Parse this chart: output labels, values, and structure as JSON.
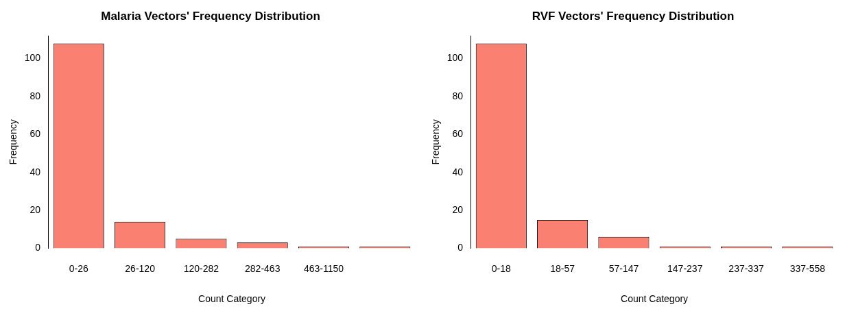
{
  "chart_data": [
    {
      "type": "bar",
      "title": "Malaria Vectors' Frequency Distribution",
      "xlabel": "Count Category",
      "ylabel": "Frequency",
      "categories": [
        "0-26",
        "26-120",
        "120-282",
        "282-463",
        "463-1150",
        null
      ],
      "values": [
        108,
        14,
        5,
        3,
        1,
        1
      ],
      "color": "#fa8072",
      "ylim": [
        0,
        112
      ],
      "yticks": [
        0,
        20,
        40,
        60,
        80,
        100
      ],
      "grid": false,
      "legend": false
    },
    {
      "type": "bar",
      "title": "RVF Vectors' Frequency Distribution",
      "xlabel": "Count Category",
      "ylabel": "Frequency",
      "categories": [
        "0-18",
        "18-57",
        "57-147",
        "147-237",
        "237-337",
        "337-558"
      ],
      "values": [
        108,
        15,
        6,
        1,
        1,
        1
      ],
      "color": "#fa8072",
      "ylim": [
        0,
        112
      ],
      "yticks": [
        0,
        20,
        40,
        60,
        80,
        100
      ],
      "grid": false,
      "legend": false
    }
  ]
}
